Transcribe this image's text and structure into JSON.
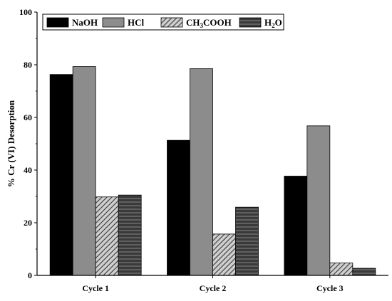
{
  "chart_data": {
    "type": "bar",
    "categories": [
      "Cycle 1",
      "Cycle 2",
      "Cycle 3"
    ],
    "series": [
      {
        "name": "NaOH",
        "values": [
          76.3,
          51.3,
          37.7
        ],
        "fill": "#000000",
        "pattern": "solid"
      },
      {
        "name": "HCl",
        "values": [
          79.3,
          78.5,
          56.8
        ],
        "fill": "#8c8c8c",
        "pattern": "solid"
      },
      {
        "name": "CH3COOH",
        "name_parts": [
          "CH",
          "3",
          "COOH"
        ],
        "values": [
          29.8,
          15.7,
          4.7
        ],
        "fill": "#c8c8c8",
        "pattern": "diagonal"
      },
      {
        "name": "H2O",
        "name_parts": [
          "H",
          "2",
          "O"
        ],
        "values": [
          30.5,
          25.9,
          2.7
        ],
        "fill": "#505050",
        "pattern": "horizontal"
      }
    ],
    "title": "",
    "xlabel": "",
    "ylabel": "% Cr (VI) Desorption",
    "ylim": [
      0,
      100
    ],
    "yticks": [
      0,
      20,
      40,
      60,
      80,
      100
    ],
    "grid": false,
    "legend_position": "top-left"
  }
}
